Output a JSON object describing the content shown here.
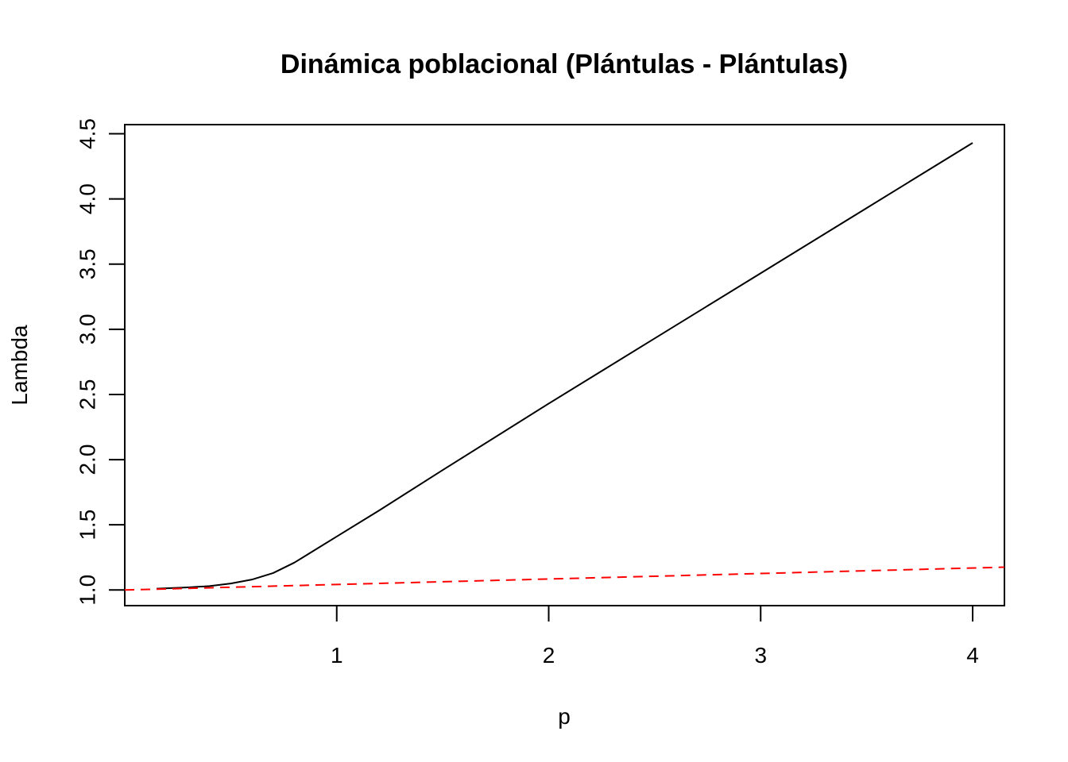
{
  "chart_data": {
    "type": "line",
    "title": "Dinámica poblacional (Plántulas - Plántulas)",
    "xlabel": "p",
    "ylabel": "Lambda",
    "xlim": [
      0.0,
      4.15
    ],
    "ylim": [
      0.88,
      4.57
    ],
    "x_ticks": [
      1,
      2,
      3,
      4
    ],
    "x_tick_labels": [
      "1",
      "2",
      "3",
      "4"
    ],
    "y_ticks": [
      1.0,
      1.5,
      2.0,
      2.5,
      3.0,
      3.5,
      4.0,
      4.5
    ],
    "y_tick_labels": [
      "1.0",
      "1.5",
      "2.0",
      "2.5",
      "3.0",
      "3.5",
      "4.0",
      "4.5"
    ],
    "grid": false,
    "series": [
      {
        "color": "#000000",
        "dash": "solid",
        "x": [
          0.15,
          0.3,
          0.4,
          0.5,
          0.6,
          0.7,
          0.8,
          0.9,
          1.0,
          1.2,
          1.5,
          2.0,
          2.5,
          3.0,
          3.5,
          4.0
        ],
        "y": [
          1.01,
          1.02,
          1.03,
          1.05,
          1.08,
          1.13,
          1.21,
          1.31,
          1.41,
          1.61,
          1.92,
          2.43,
          2.93,
          3.43,
          3.93,
          4.43
        ]
      },
      {
        "color": "#ff0000",
        "dash": "dashed",
        "x": [
          0.0,
          4.15
        ],
        "y": [
          1.0,
          1.175
        ]
      }
    ]
  }
}
